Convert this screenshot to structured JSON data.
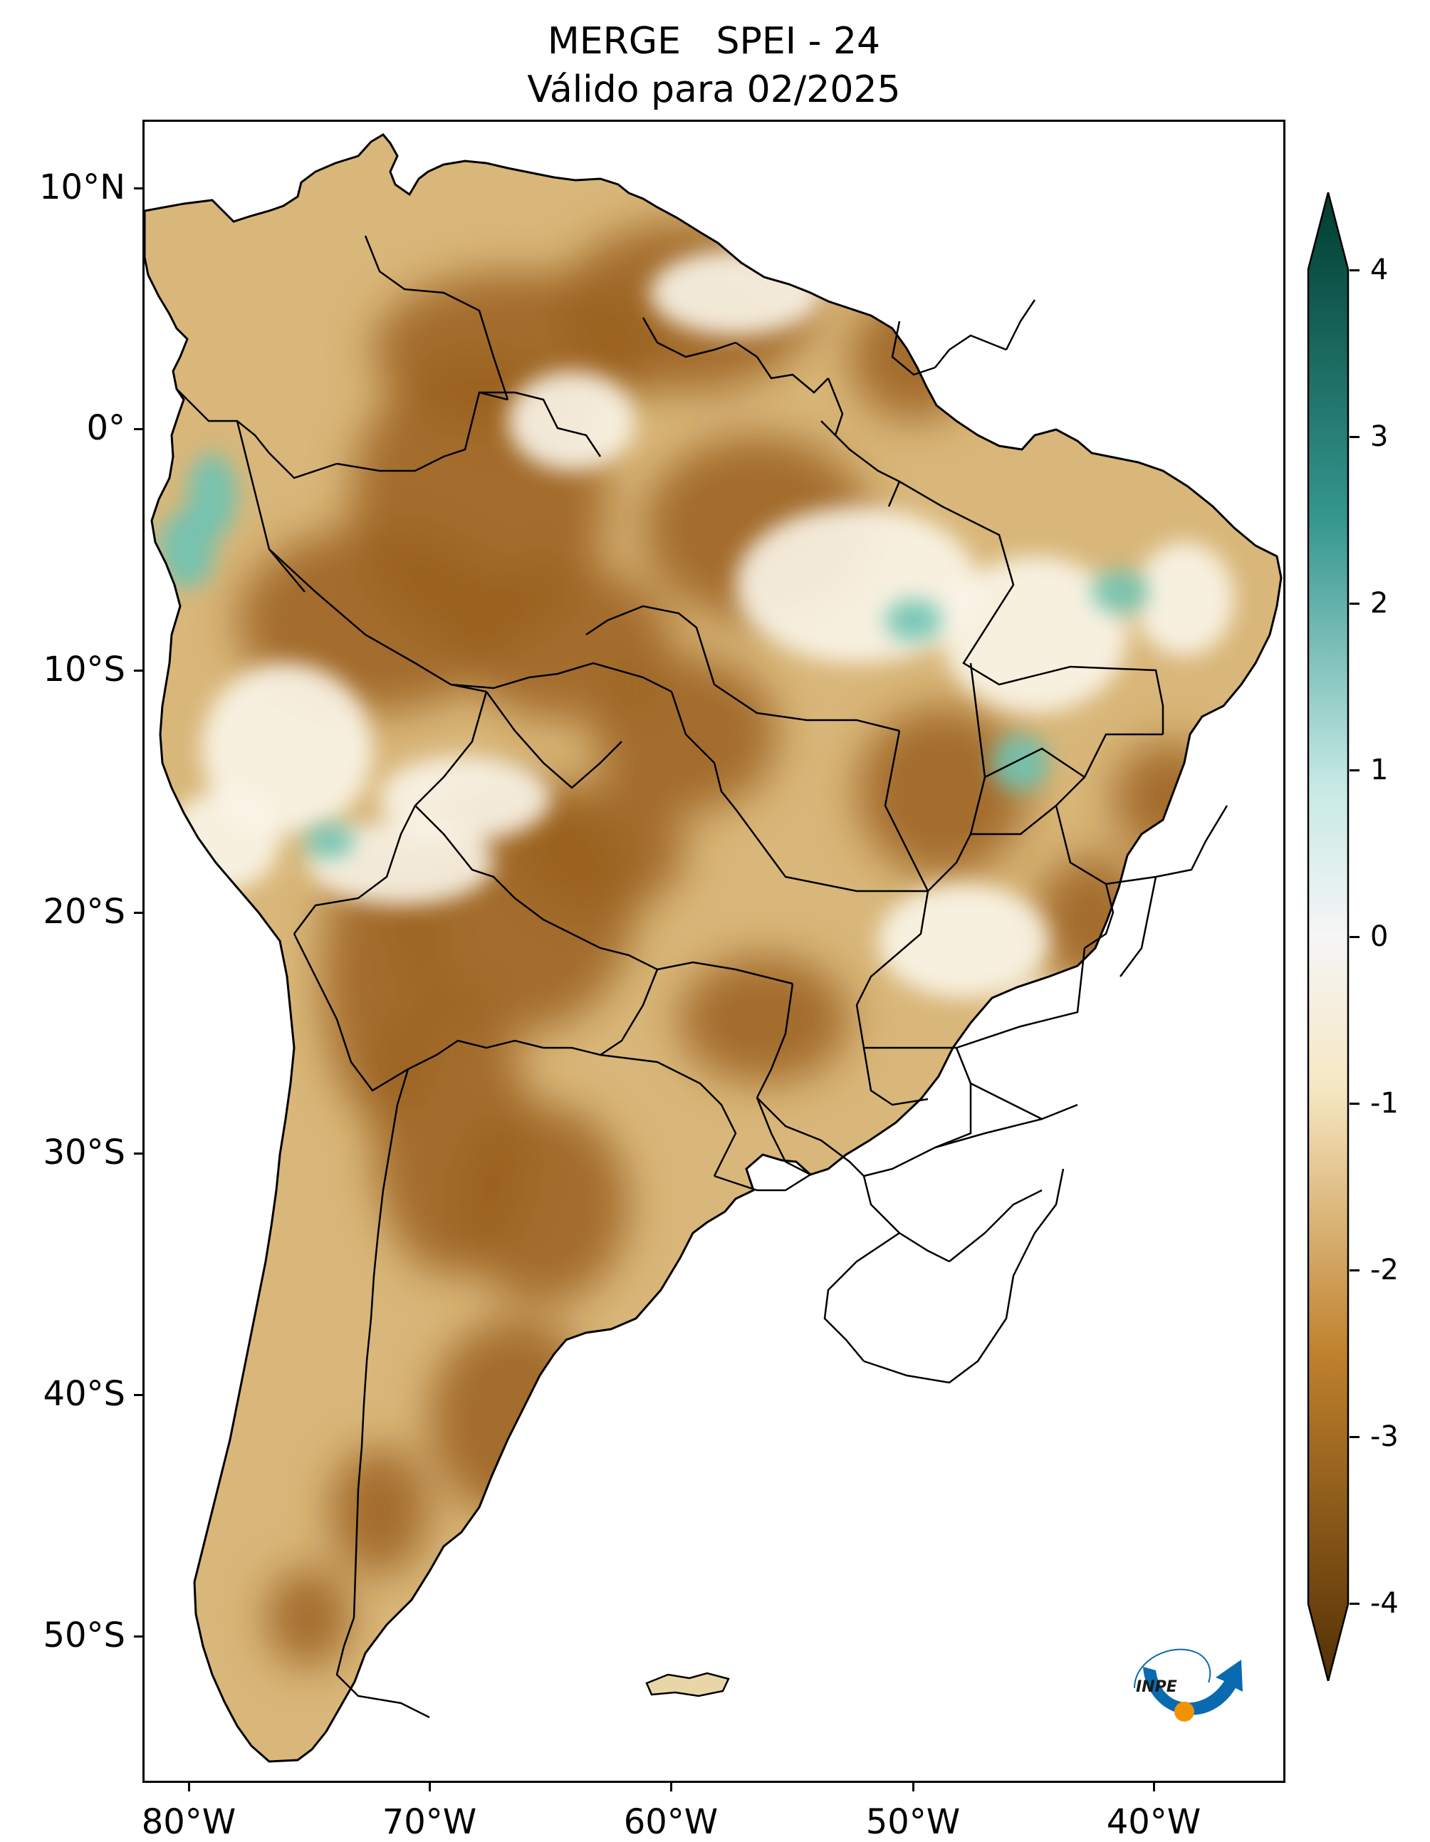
{
  "title": {
    "line1": "MERGE   SPEI - 24",
    "line2": "Válido para 02/2025"
  },
  "axes": {
    "lat_ticks": [
      "10°N",
      "0°",
      "10°S",
      "20°S",
      "30°S",
      "40°S",
      "50°S"
    ],
    "lon_ticks": [
      "80°W",
      "70°W",
      "60°W",
      "50°W",
      "40°W"
    ]
  },
  "colorbar": {
    "min": -4,
    "max": 4,
    "ticks": [
      "4",
      "3",
      "2",
      "1",
      "0",
      "-1",
      "-2",
      "-3",
      "-4"
    ],
    "colors": {
      "top": "#003c30",
      "mid_high": "#35978f",
      "light_high": "#c7eae5",
      "zero": "#f5f5f5",
      "light_low": "#f6e8c3",
      "mid_low": "#bf812d",
      "bottom": "#543005"
    },
    "extend": "both"
  },
  "logo": {
    "text": "INPE",
    "icon": "inpe-logo-icon",
    "colors": {
      "arc": "#0a6ab0",
      "dot": "#f39200"
    }
  },
  "map": {
    "region": "South America",
    "ocean_color": "#ffffff",
    "land_base_color": "#d9b77a",
    "dry_color": "#9a5f1c",
    "wet_color": "#6fc3b4"
  }
}
